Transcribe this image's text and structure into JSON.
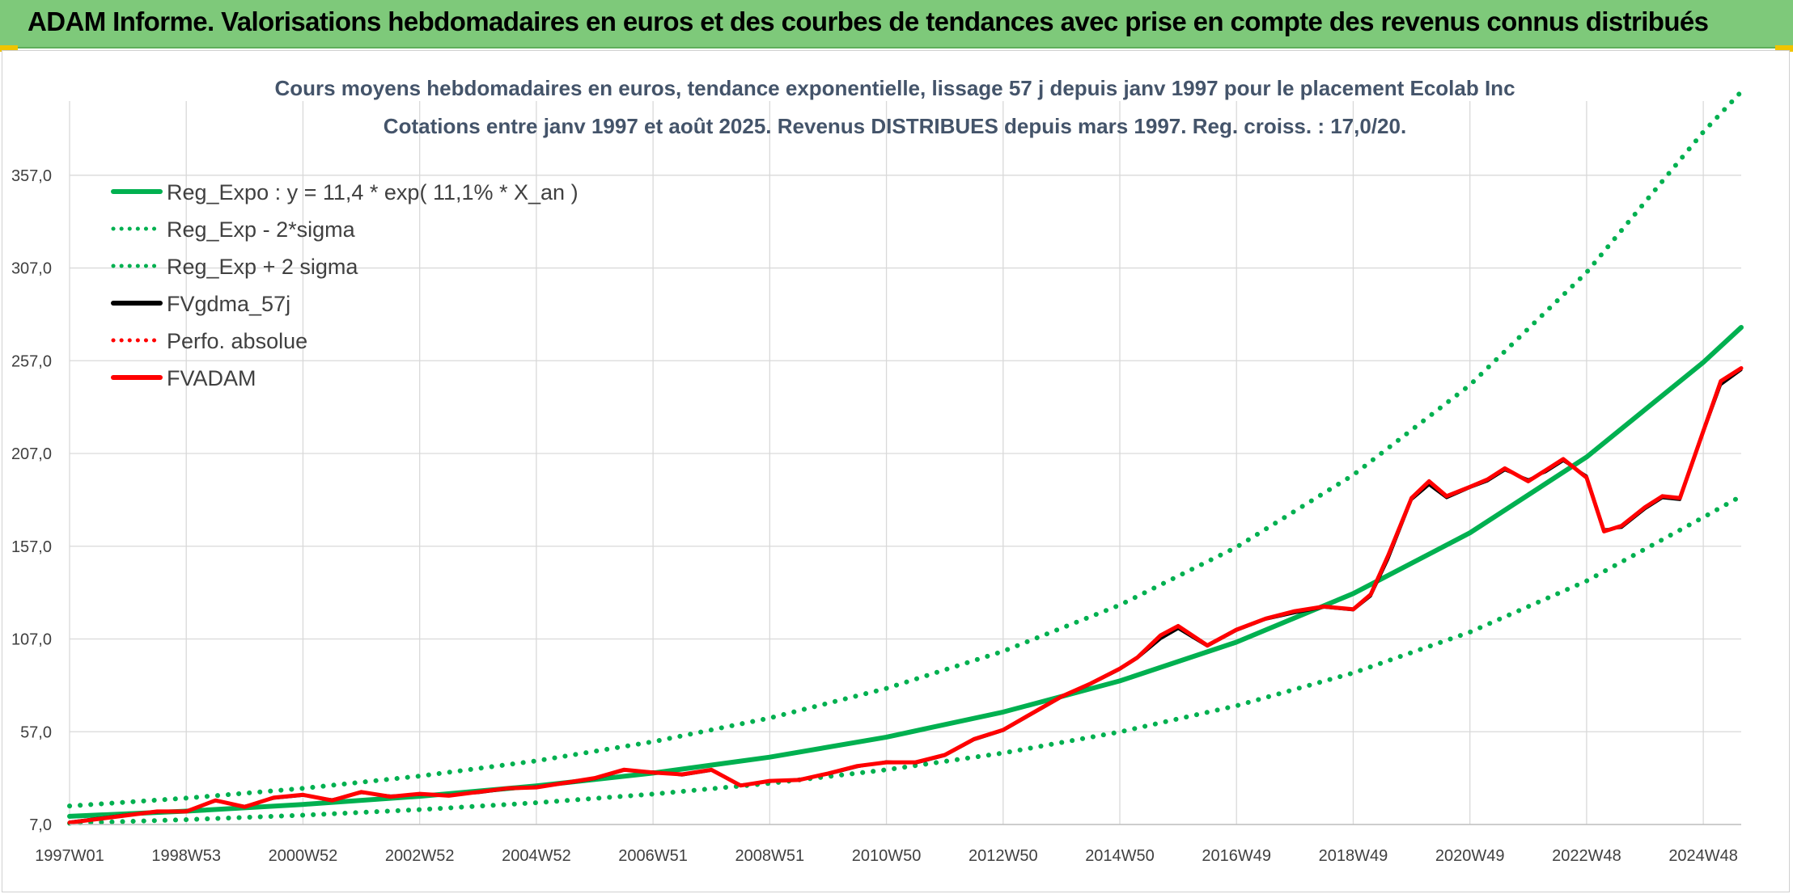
{
  "header": {
    "title": "ADAM Informe. Valorisations hebdomadaires en euros et des courbes de tendances avec prise en compte des revenus connus distribués"
  },
  "colors": {
    "header_bg": "#7ec97a",
    "green": "#00b050",
    "red": "#ff0000",
    "black": "#000000",
    "grid": "#d9d9d9",
    "accent": "#f0c400"
  },
  "chart_data": {
    "type": "line",
    "title": "Cours moyens hebdomadaires en euros, tendance exponentielle, lissage 57 j depuis janv 1997 pour le placement Ecolab Inc",
    "subtitle": "Cotations entre janv 1997 et août 2025. Revenus DISTRIBUES depuis mars 1997. Reg. croiss. : 17,0/20.",
    "xlabel": "",
    "ylabel": "",
    "x_range": [
      1997.0,
      2025.65
    ],
    "ylim": [
      7.0,
      397.0
    ],
    "y_ticks": [
      "7,0",
      "57,0",
      "107,0",
      "157,0",
      "207,0",
      "257,0",
      "307,0",
      "357,0"
    ],
    "y_tick_values": [
      7,
      57,
      107,
      157,
      207,
      257,
      307,
      357
    ],
    "x_ticks": [
      "1997W01",
      "1998W53",
      "2000W52",
      "2002W52",
      "2004W52",
      "2006W51",
      "2008W51",
      "2010W50",
      "2012W50",
      "2014W50",
      "2016W49",
      "2018W49",
      "2020W49",
      "2022W48",
      "2024W48"
    ],
    "x_tick_values": [
      1997.0,
      1999.0,
      2001.0,
      2003.0,
      2005.0,
      2007.0,
      2009.0,
      2011.0,
      2013.0,
      2015.0,
      2017.0,
      2019.0,
      2021.0,
      2023.0,
      2025.0
    ],
    "grid": true,
    "legend_position": "top-left",
    "legend": [
      {
        "label": "Reg_Expo : y = 11,4 * exp( 11,1% *  X_an )",
        "color": "#00b050",
        "style": "solid"
      },
      {
        "label": "Reg_Exp - 2*sigma",
        "color": "#00b050",
        "style": "dotted"
      },
      {
        "label": "Reg_Exp + 2 sigma",
        "color": "#00b050",
        "style": "dotted"
      },
      {
        "label": "FVgdma_57j",
        "color": "#000000",
        "style": "solid"
      },
      {
        "label": "Perfo. absolue",
        "color": "#ff0000",
        "style": "dotted"
      },
      {
        "label": "FVADAM",
        "color": "#ff0000",
        "style": "solid"
      }
    ],
    "series": [
      {
        "name": "Reg_Expo : y = 11,4 * exp( 11,1% *  X_an )",
        "color": "#00b050",
        "style": "solid",
        "x": [
          1997.0,
          1999.0,
          2001.0,
          2003.0,
          2005.0,
          2007.0,
          2009.0,
          2011.0,
          2013.0,
          2015.0,
          2017.0,
          2019.0,
          2021.0,
          2023.0,
          2025.0,
          2025.65
        ],
        "values": [
          11.4,
          14.2,
          17.8,
          22.2,
          27.8,
          34.7,
          43.3,
          54.1,
          67.6,
          84.4,
          105.3,
          131.5,
          164.2,
          205.1,
          256.1,
          275.0
        ]
      },
      {
        "name": "Reg_Exp - 2*sigma",
        "color": "#00b050",
        "style": "dotted",
        "x": [
          1997.0,
          1999.0,
          2001.0,
          2003.0,
          2005.0,
          2007.0,
          2009.0,
          2011.0,
          2013.0,
          2015.0,
          2017.0,
          2019.0,
          2021.0,
          2023.0,
          2025.0,
          2025.65
        ],
        "values": [
          7.7,
          9.6,
          12.0,
          15.0,
          18.7,
          23.4,
          29.2,
          36.5,
          45.5,
          56.9,
          71.0,
          88.7,
          110.7,
          138.3,
          172.6,
          184.0
        ]
      },
      {
        "name": "Reg_Exp + 2 sigma",
        "color": "#00b050",
        "style": "dotted",
        "x": [
          1997.0,
          1999.0,
          2001.0,
          2003.0,
          2005.0,
          2007.0,
          2009.0,
          2011.0,
          2013.0,
          2015.0,
          2017.0,
          2019.0,
          2021.0,
          2023.0,
          2025.0,
          2025.65
        ],
        "values": [
          17.0,
          21.2,
          26.5,
          33.1,
          41.3,
          51.6,
          64.4,
          80.4,
          100.4,
          125.3,
          156.5,
          195.4,
          243.9,
          304.6,
          380.3,
          402.0
        ]
      },
      {
        "name": "FVgdma_57j",
        "color": "#000000",
        "style": "solid",
        "x": [
          1997.0,
          1997.5,
          1998.0,
          1998.5,
          1999.0,
          1999.5,
          2000.0,
          2000.5,
          2001.0,
          2001.5,
          2002.0,
          2002.5,
          2003.0,
          2003.5,
          2004.0,
          2004.5,
          2005.0,
          2005.5,
          2006.0,
          2006.5,
          2007.0,
          2007.5,
          2008.0,
          2008.5,
          2009.0,
          2009.5,
          2010.0,
          2010.5,
          2011.0,
          2011.5,
          2012.0,
          2012.5,
          2013.0,
          2013.5,
          2014.0,
          2014.5,
          2015.0,
          2015.3,
          2015.7,
          2016.0,
          2016.5,
          2017.0,
          2017.5,
          2018.0,
          2018.5,
          2019.0,
          2019.3,
          2019.6,
          2020.0,
          2020.3,
          2020.6,
          2021.0,
          2021.3,
          2021.6,
          2022.0,
          2022.3,
          2022.6,
          2023.0,
          2023.3,
          2023.6,
          2024.0,
          2024.3,
          2024.6,
          2025.0,
          2025.3,
          2025.65
        ],
        "values": [
          8.5,
          10.5,
          12.5,
          13.5,
          14.5,
          19.5,
          17.0,
          21.0,
          22.5,
          20.5,
          24.0,
          22.5,
          23.0,
          23.0,
          24.0,
          26.0,
          27.5,
          29.0,
          31.5,
          36.0,
          35.5,
          33.5,
          36.0,
          28.5,
          30.0,
          31.5,
          34.0,
          38.0,
          41.0,
          40.0,
          44.0,
          52.5,
          57.5,
          66.5,
          75.5,
          82.5,
          90.5,
          96.5,
          107.0,
          112.5,
          103.0,
          111.5,
          117.5,
          121.0,
          124.0,
          122.5,
          130.0,
          150.0,
          182.0,
          190.0,
          183.0,
          188.5,
          192.0,
          198.0,
          193.0,
          197.0,
          203.0,
          195.0,
          166.0,
          167.0,
          177.0,
          183.0,
          182.0,
          218.0,
          244.0,
          252.0
        ]
      },
      {
        "name": "FVADAM",
        "color": "#ff0000",
        "style": "solid",
        "x": [
          1997.0,
          1997.5,
          1998.0,
          1998.5,
          1999.0,
          1999.5,
          2000.0,
          2000.5,
          2001.0,
          2001.5,
          2002.0,
          2002.5,
          2003.0,
          2003.5,
          2004.0,
          2004.5,
          2005.0,
          2005.5,
          2006.0,
          2006.5,
          2007.0,
          2007.5,
          2008.0,
          2008.5,
          2009.0,
          2009.5,
          2010.0,
          2010.5,
          2011.0,
          2011.5,
          2012.0,
          2012.5,
          2013.0,
          2013.5,
          2014.0,
          2014.5,
          2015.0,
          2015.3,
          2015.7,
          2016.0,
          2016.5,
          2017.0,
          2017.5,
          2018.0,
          2018.5,
          2019.0,
          2019.3,
          2019.6,
          2020.0,
          2020.3,
          2020.6,
          2021.0,
          2021.3,
          2021.6,
          2022.0,
          2022.3,
          2022.6,
          2023.0,
          2023.3,
          2023.6,
          2024.0,
          2024.3,
          2024.6,
          2025.0,
          2025.3,
          2025.65
        ],
        "values": [
          8.0,
          10.0,
          12.0,
          14.0,
          14.0,
          20.0,
          16.5,
          21.5,
          23.0,
          20.0,
          24.5,
          22.0,
          23.5,
          22.5,
          24.5,
          26.5,
          27.0,
          29.5,
          32.0,
          36.5,
          35.0,
          34.0,
          36.5,
          28.0,
          30.5,
          31.0,
          34.5,
          38.5,
          40.5,
          40.5,
          44.5,
          53.0,
          58.0,
          67.0,
          76.0,
          83.0,
          91.0,
          97.0,
          109.0,
          114.0,
          103.5,
          112.0,
          118.0,
          122.0,
          124.5,
          123.0,
          131.0,
          152.0,
          183.0,
          192.0,
          184.0,
          189.0,
          193.0,
          199.0,
          192.0,
          198.0,
          204.0,
          194.0,
          165.0,
          168.0,
          178.0,
          184.0,
          183.0,
          219.0,
          246.0,
          253.0
        ]
      }
    ]
  }
}
